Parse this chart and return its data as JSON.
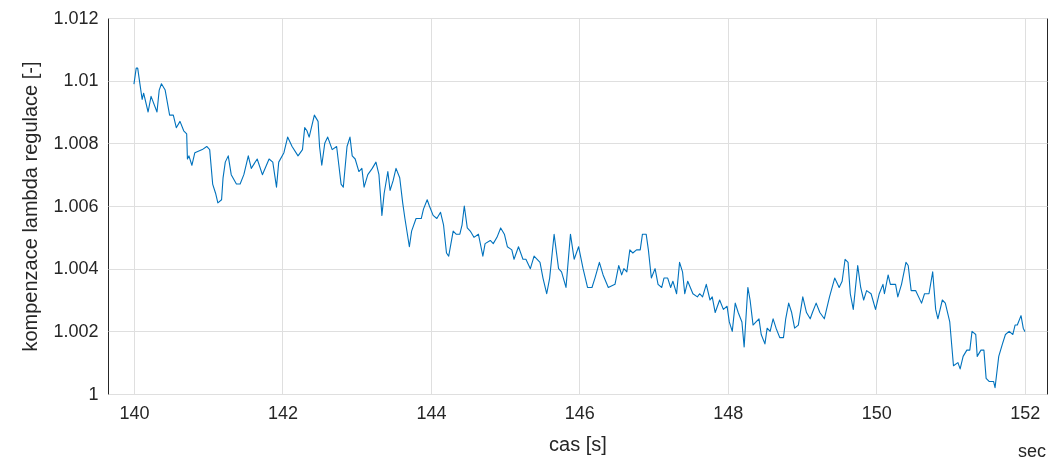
{
  "chart_data": {
    "type": "line",
    "xlabel": "cas [s]",
    "ylabel": "kompenzace lambda regulace [-]",
    "annotations": [
      "sec"
    ],
    "line_style": "solid",
    "xlim": [
      139.65,
      152.3
    ],
    "xticks": [
      140,
      142,
      144,
      146,
      148,
      150,
      152
    ],
    "ylim": [
      1,
      1.012
    ],
    "yticks": [
      1,
      1.002,
      1.004,
      1.006,
      1.008,
      1.01,
      1.012
    ],
    "grid": true,
    "x": [
      140.0,
      140.03,
      140.05,
      140.08,
      140.11,
      140.13,
      140.19,
      140.23,
      140.31,
      140.34,
      140.37,
      140.42,
      140.48,
      140.53,
      140.57,
      140.62,
      140.67,
      140.71,
      140.72,
      140.74,
      140.78,
      140.82,
      140.92,
      140.98,
      141.02,
      141.06,
      141.1,
      141.13,
      141.18,
      141.2,
      141.23,
      141.27,
      141.31,
      141.38,
      141.43,
      141.48,
      141.54,
      141.58,
      141.66,
      141.73,
      141.82,
      141.87,
      141.92,
      141.95,
      142.02,
      142.07,
      142.13,
      142.21,
      142.27,
      142.3,
      142.33,
      142.36,
      142.43,
      142.48,
      142.5,
      142.53,
      142.57,
      142.61,
      142.67,
      142.73,
      142.76,
      142.79,
      142.82,
      142.87,
      142.91,
      142.94,
      142.98,
      143.03,
      143.07,
      143.1,
      143.15,
      143.21,
      143.26,
      143.3,
      143.34,
      143.37,
      143.42,
      143.45,
      143.49,
      143.53,
      143.58,
      143.62,
      143.65,
      143.71,
      143.74,
      143.8,
      143.87,
      143.9,
      143.95,
      143.98,
      144.03,
      144.08,
      144.13,
      144.17,
      144.21,
      144.24,
      144.3,
      144.34,
      144.39,
      144.42,
      144.45,
      144.49,
      144.53,
      144.58,
      144.64,
      144.7,
      144.73,
      144.8,
      144.84,
      144.89,
      144.94,
      144.99,
      145.03,
      145.09,
      145.12,
      145.18,
      145.24,
      145.28,
      145.34,
      145.39,
      145.47,
      145.51,
      145.56,
      145.6,
      145.66,
      145.72,
      145.76,
      145.82,
      145.88,
      145.93,
      145.99,
      146.05,
      146.11,
      146.17,
      146.21,
      146.27,
      146.32,
      146.39,
      146.48,
      146.53,
      146.57,
      146.6,
      146.64,
      146.68,
      146.72,
      146.77,
      146.82,
      146.85,
      146.9,
      146.93,
      146.97,
      147.02,
      147.06,
      147.11,
      147.14,
      147.19,
      147.23,
      147.26,
      147.31,
      147.35,
      147.39,
      147.42,
      147.46,
      147.53,
      147.59,
      147.62,
      147.66,
      147.71,
      147.76,
      147.79,
      147.83,
      147.89,
      147.94,
      147.99,
      148.02,
      148.06,
      148.1,
      148.14,
      148.19,
      148.22,
      148.27,
      148.3,
      148.34,
      148.38,
      148.42,
      148.45,
      148.5,
      148.53,
      148.57,
      148.61,
      148.65,
      148.7,
      148.75,
      148.78,
      148.82,
      148.86,
      148.9,
      148.95,
      149.01,
      149.06,
      149.11,
      149.14,
      149.19,
      149.24,
      149.3,
      149.33,
      149.37,
      149.44,
      149.5,
      149.54,
      149.58,
      149.62,
      149.65,
      149.69,
      149.75,
      149.79,
      149.83,
      149.87,
      149.93,
      149.99,
      150.04,
      150.09,
      150.11,
      150.16,
      150.19,
      150.26,
      150.29,
      150.34,
      150.4,
      150.43,
      150.47,
      150.53,
      150.61,
      150.65,
      150.71,
      150.76,
      150.8,
      150.83,
      150.89,
      150.93,
      150.99,
      151.04,
      151.1,
      151.13,
      151.17,
      151.22,
      151.26,
      151.29,
      151.34,
      151.36,
      151.41,
      151.45,
      151.48,
      151.52,
      151.58,
      151.6,
      151.65,
      151.7,
      151.74,
      151.79,
      151.84,
      151.87,
      151.9,
      151.95,
      151.98,
      152.0
    ],
    "series": [
      {
        "color": "#0072bd",
        "values": [
          1.0099,
          1.0104,
          1.0104,
          1.0099,
          1.0094,
          1.0096,
          1.009,
          1.0095,
          1.009,
          1.0097,
          1.0099,
          1.0097,
          1.0089,
          1.0089,
          1.0085,
          1.0087,
          1.0084,
          1.0083,
          1.0075,
          1.0076,
          1.0073,
          1.0077,
          1.0078,
          1.0079,
          1.0078,
          1.0067,
          1.0064,
          1.0061,
          1.0062,
          1.0069,
          1.0074,
          1.0076,
          1.007,
          1.0067,
          1.0067,
          1.007,
          1.0076,
          1.0072,
          1.0075,
          1.007,
          1.0075,
          1.0074,
          1.0066,
          1.0074,
          1.0077,
          1.0082,
          1.0079,
          1.0076,
          1.0078,
          1.0085,
          1.0084,
          1.0082,
          1.0089,
          1.0087,
          1.0079,
          1.0073,
          1.008,
          1.0082,
          1.0078,
          1.0079,
          1.0073,
          1.0067,
          1.0066,
          1.0079,
          1.0082,
          1.0076,
          1.0075,
          1.0071,
          1.0072,
          1.0066,
          1.007,
          1.0072,
          1.0074,
          1.007,
          1.0057,
          1.0064,
          1.0071,
          1.0065,
          1.0068,
          1.0072,
          1.0069,
          1.0061,
          1.0056,
          1.0047,
          1.0052,
          1.0056,
          1.0056,
          1.0059,
          1.0062,
          1.006,
          1.0057,
          1.0056,
          1.0058,
          1.0054,
          1.0045,
          1.0044,
          1.0052,
          1.0051,
          1.0051,
          1.0054,
          1.006,
          1.0053,
          1.0052,
          1.005,
          1.0051,
          1.0044,
          1.0048,
          1.0049,
          1.0048,
          1.005,
          1.0053,
          1.0051,
          1.0047,
          1.0046,
          1.0043,
          1.0047,
          1.0043,
          1.0043,
          1.004,
          1.0044,
          1.0042,
          1.0037,
          1.0032,
          1.0037,
          1.0051,
          1.004,
          1.0039,
          1.0034,
          1.0051,
          1.0043,
          1.0047,
          1.004,
          1.0034,
          1.0034,
          1.0037,
          1.0042,
          1.0038,
          1.0034,
          1.0035,
          1.0041,
          1.0038,
          1.004,
          1.0039,
          1.0046,
          1.0045,
          1.0046,
          1.0046,
          1.0051,
          1.0051,
          1.0046,
          1.0037,
          1.004,
          1.0035,
          1.0034,
          1.0037,
          1.0037,
          1.0034,
          1.0036,
          1.0032,
          1.0042,
          1.0039,
          1.0032,
          1.0036,
          1.0032,
          1.0031,
          1.0032,
          1.0031,
          1.0035,
          1.003,
          1.0031,
          1.0026,
          1.003,
          1.0027,
          1.0028,
          1.0023,
          1.002,
          1.0029,
          1.0026,
          1.0023,
          1.0015,
          1.0034,
          1.003,
          1.0022,
          1.0023,
          1.0024,
          1.0019,
          1.0016,
          1.0021,
          1.002,
          1.0024,
          1.0021,
          1.0018,
          1.0018,
          1.0024,
          1.0029,
          1.0026,
          1.0021,
          1.0022,
          1.0031,
          1.0026,
          1.0024,
          1.0026,
          1.0029,
          1.0026,
          1.0024,
          1.0027,
          1.0031,
          1.0037,
          1.0034,
          1.0036,
          1.0043,
          1.0042,
          1.0032,
          1.0027,
          1.0041,
          1.0034,
          1.003,
          1.0033,
          1.0032,
          1.0027,
          1.0032,
          1.0035,
          1.0032,
          1.0038,
          1.0035,
          1.0035,
          1.0031,
          1.0035,
          1.0042,
          1.0041,
          1.0033,
          1.0033,
          1.0029,
          1.0032,
          1.0032,
          1.0039,
          1.0027,
          1.0024,
          1.003,
          1.0029,
          1.0023,
          1.0009,
          1.001,
          1.0008,
          1.0012,
          1.0014,
          1.0014,
          1.002,
          1.0019,
          1.0012,
          1.0014,
          1.0014,
          1.0005,
          1.0004,
          1.0004,
          1.0002,
          1.0012,
          1.0016,
          1.0019,
          1.002,
          1.0019,
          1.0022,
          1.0022,
          1.0025,
          1.0021,
          1.002
        ]
      }
    ]
  }
}
